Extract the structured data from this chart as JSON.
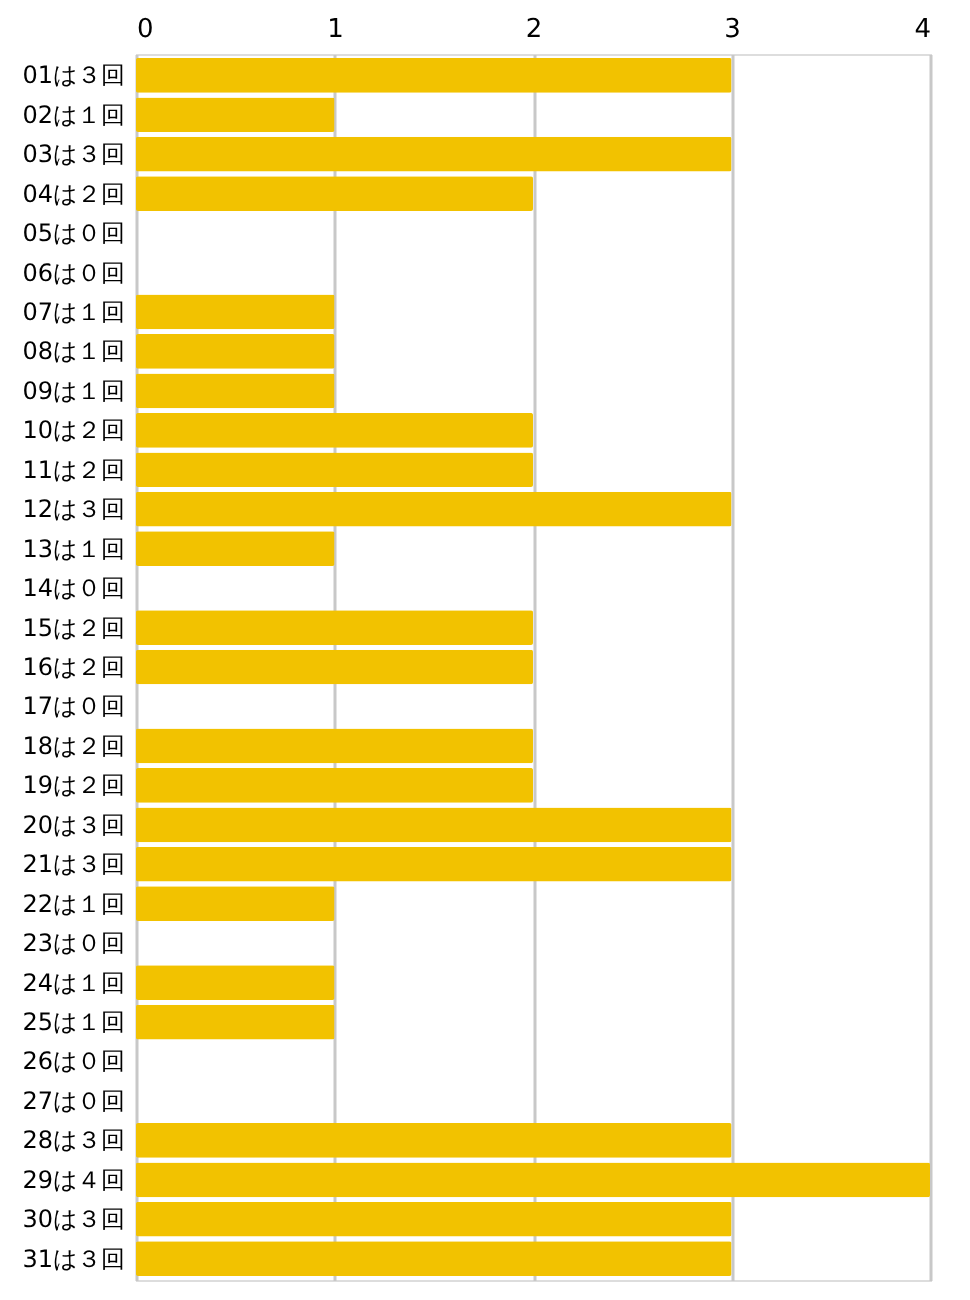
{
  "chart_data": {
    "type": "bar",
    "orientation": "horizontal",
    "categories": [
      "01は３回",
      "02は１回",
      "03は３回",
      "04は２回",
      "05は０回",
      "06は０回",
      "07は１回",
      "08は１回",
      "09は１回",
      "10は２回",
      "11は２回",
      "12は３回",
      "13は１回",
      "14は０回",
      "15は２回",
      "16は２回",
      "17は０回",
      "18は２回",
      "19は２回",
      "20は３回",
      "21は３回",
      "22は１回",
      "23は０回",
      "24は１回",
      "25は１回",
      "26は０回",
      "27は０回",
      "28は３回",
      "29は４回",
      "30は３回",
      "31は３回"
    ],
    "values": [
      3,
      1,
      3,
      2,
      0,
      0,
      1,
      1,
      1,
      2,
      2,
      3,
      1,
      0,
      2,
      2,
      0,
      2,
      2,
      3,
      3,
      1,
      0,
      1,
      1,
      0,
      0,
      3,
      4,
      3,
      3
    ],
    "color": "#f2c200",
    "xlim": [
      0,
      4
    ],
    "xticks": [
      0,
      1,
      2,
      3,
      4
    ],
    "grid": "x"
  }
}
